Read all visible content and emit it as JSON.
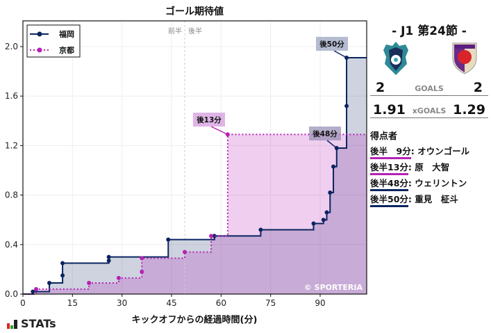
{
  "chart_title": "ゴール期待値",
  "half_labels": {
    "first": "前半",
    "second": "後半"
  },
  "legend": [
    {
      "name": "福岡",
      "color": "#0b2460"
    },
    {
      "name": "京都",
      "color": "#b521b5"
    }
  ],
  "watermark": "© SPORTERIA",
  "annotations": [
    {
      "text": "後50分",
      "team": "福岡"
    },
    {
      "text": "後13分",
      "team": "京都"
    },
    {
      "text": "後48分",
      "team": "福岡"
    }
  ],
  "chart_data": {
    "type": "line",
    "title": "ゴール期待値",
    "xlabel": "キックオフからの経過時間(分)",
    "ylabel": "",
    "xlim": [
      0,
      104
    ],
    "ylim": [
      0,
      2.2
    ],
    "xticks": [
      0,
      15,
      30,
      45,
      60,
      75,
      90
    ],
    "yticks": [
      0.0,
      0.4,
      0.8,
      1.2,
      1.6,
      2.0
    ],
    "grid": true,
    "legend_position": "upper left",
    "step": true,
    "series": [
      {
        "name": "福岡",
        "style": "solid",
        "color": "#0b2460",
        "x": [
          0,
          3,
          8,
          12,
          12,
          26,
          26,
          44,
          58,
          72,
          88,
          91,
          92,
          93,
          94,
          95,
          98,
          98,
          104
        ],
        "y": [
          0,
          0.02,
          0.09,
          0.15,
          0.25,
          0.27,
          0.3,
          0.44,
          0.47,
          0.52,
          0.57,
          0.6,
          0.66,
          0.82,
          1.03,
          1.18,
          1.52,
          1.91,
          1.91
        ]
      },
      {
        "name": "京都",
        "style": "dotted",
        "color": "#b521b5",
        "x": [
          0,
          4,
          20,
          29,
          36,
          36,
          49,
          57,
          62,
          104
        ],
        "y": [
          0,
          0.04,
          0.09,
          0.13,
          0.18,
          0.29,
          0.34,
          0.47,
          1.29,
          1.29
        ]
      }
    ],
    "annotations": [
      {
        "text": "後50分",
        "x": 98,
        "y": 1.91
      },
      {
        "text": "後13分",
        "x": 62,
        "y": 1.29
      },
      {
        "text": "後48分",
        "x": 95,
        "y": 1.18
      }
    ],
    "vertical_line": {
      "x": 49,
      "labels": [
        "前半",
        "後半"
      ]
    }
  },
  "match": {
    "round": "- J1 第24節 -",
    "home": {
      "name": "福岡",
      "goals": "2",
      "xgoals": "1.91",
      "color": "#0b2460"
    },
    "away": {
      "name": "京都",
      "goals": "2",
      "xgoals": "1.29",
      "color": "#b521b5"
    },
    "goals_label": "GOALS",
    "xgoals_label": "xGOALS"
  },
  "scorers_title": "得点者",
  "scorers": [
    {
      "time": "後半　9分",
      "name": "オウンゴール",
      "color": "#b521b5"
    },
    {
      "time": "後半13分",
      "name": "原　大智",
      "color": "#b521b5"
    },
    {
      "time": "後半48分",
      "name": "ウェリントン",
      "color": "#0b2460"
    },
    {
      "time": "後半50分",
      "name": "重見　柾斗",
      "color": "#0b2460"
    }
  ],
  "brand": "STATs"
}
